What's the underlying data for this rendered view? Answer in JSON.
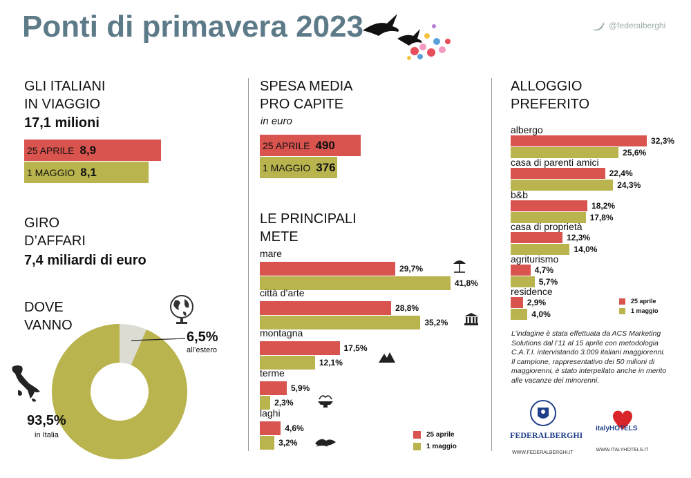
{
  "header": {
    "title": "Ponti di primavera 2023",
    "twitter": "@federalberghi"
  },
  "travelers": {
    "heading_line1": "GLI ITALIANI",
    "heading_line2": "IN VIAGGIO",
    "total": "17,1 milioni",
    "bar1_label": "25 APRILE",
    "bar1_value": "8,9",
    "bar2_label": "1 MAGGIO",
    "bar2_value": "8,1"
  },
  "turnover": {
    "heading_line1": "GIRO",
    "heading_line2": "D’AFFARI",
    "value": "7,4 miliardi di euro"
  },
  "spending": {
    "heading_line1": "SPESA MEDIA",
    "heading_line2": "PRO CAPITE",
    "unit": "in euro",
    "bar1_label": "25 APRILE",
    "bar1_value": "490",
    "bar2_label": "1 MAGGIO",
    "bar2_value": "376"
  },
  "where": {
    "heading_line1": "DOVE",
    "heading_line2": "VANNO",
    "abroad_value": "6,5%",
    "abroad_label": "all’estero",
    "italy_value": "93,5%",
    "italy_label": "in Italia"
  },
  "destinations": {
    "heading_line1": "LE PRINCIPALI",
    "heading_line2": "METE"
  },
  "accommodation": {
    "heading_line1": "ALLOGGIO",
    "heading_line2": "PREFERITO"
  },
  "legend": {
    "series1": "25 aprile",
    "series2": "1 maggio"
  },
  "note": {
    "p1": "L’indagine è stata effettuata da ACS Marketing Solutions dal l’11 al 15 aprile con metodologia C.A.T.I. intervistando 3.009 italiani maggiorenni.",
    "p2": "Il campione, rappresentativo dei 50 milioni di maggiorenni, è stato interpellato anche in merito alle vacanze dei minorenni."
  },
  "logos": {
    "federalberghi": "FEDERALBERGHI",
    "federalberghi_url": "WWW.FEDERALBERGHI.IT",
    "italyhotels": "italyHOTELS",
    "italyhotels_url": "WWW.ITALYHOTELS.IT"
  },
  "colors": {
    "series1": "#d9534f",
    "series2": "#b9b44e",
    "title": "#5d7a88"
  },
  "chart_data": [
    {
      "type": "bar",
      "title": "GLI ITALIANI IN VIAGGIO",
      "categories": [
        "25 APRILE",
        "1 MAGGIO"
      ],
      "values": [
        8.9,
        8.1
      ],
      "unit": "milioni"
    },
    {
      "type": "bar",
      "title": "SPESA MEDIA PRO CAPITE",
      "categories": [
        "25 APRILE",
        "1 MAGGIO"
      ],
      "values": [
        490,
        376
      ],
      "unit": "euro"
    },
    {
      "type": "pie",
      "title": "DOVE VANNO",
      "categories": [
        "all’estero",
        "in Italia"
      ],
      "values": [
        6.5,
        93.5
      ],
      "labels": [
        "6,5%",
        "93,5%"
      ]
    },
    {
      "type": "bar",
      "title": "LE PRINCIPALI METE",
      "categories": [
        "mare",
        "città d’arte",
        "montagna",
        "terme",
        "laghi"
      ],
      "series": [
        {
          "name": "25 aprile",
          "values": [
            29.7,
            28.8,
            17.5,
            5.9,
            4.6
          ],
          "labels": [
            "29,7%",
            "28,8%",
            "17,5%",
            "5,9%",
            "4,6%"
          ]
        },
        {
          "name": "1 maggio",
          "values": [
            41.8,
            35.2,
            12.1,
            2.3,
            3.2
          ],
          "labels": [
            "41,8%",
            "35,2%",
            "12,1%",
            "2,3%",
            "3,2%"
          ]
        }
      ]
    },
    {
      "type": "bar",
      "title": "ALLOGGIO PREFERITO",
      "categories": [
        "albergo",
        "casa di parenti amici",
        "b&b",
        "casa di proprietà",
        "agriturismo",
        "residence"
      ],
      "series": [
        {
          "name": "25 aprile",
          "values": [
            32.3,
            22.4,
            18.2,
            12.3,
            4.7,
            2.9
          ],
          "labels": [
            "32,3%",
            "22,4%",
            "18,2%",
            "12,3%",
            "4,7%",
            "2,9%"
          ]
        },
        {
          "name": "1 maggio",
          "values": [
            25.6,
            24.3,
            17.8,
            14.0,
            5.7,
            4.0
          ],
          "labels": [
            "25,6%",
            "24,3%",
            "17,8%",
            "14,0%",
            "5,7%",
            "4,0%"
          ]
        }
      ]
    }
  ]
}
